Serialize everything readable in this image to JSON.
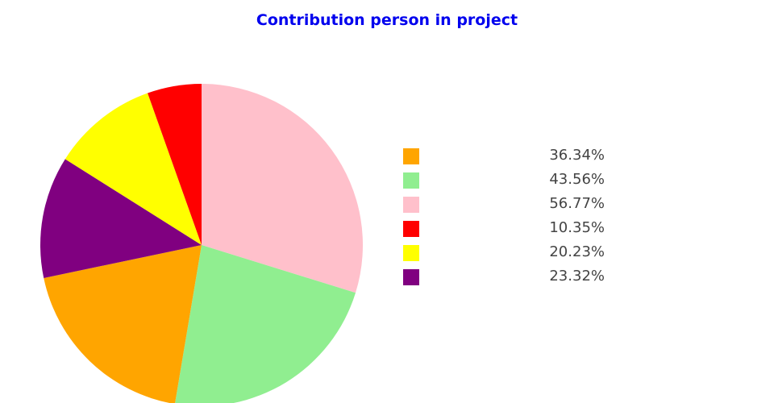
{
  "chart_data": {
    "type": "pie",
    "title": "Contribution person in project",
    "slices": [
      {
        "value": 56.77,
        "label": "56.77%",
        "color": "#ffc0cb"
      },
      {
        "value": 43.56,
        "label": "43.56%",
        "color": "#90ee90"
      },
      {
        "value": 36.34,
        "label": "36.34%",
        "color": "#ffa500"
      },
      {
        "value": 23.32,
        "label": "23.32%",
        "color": "#800080"
      },
      {
        "value": 20.23,
        "label": "20.23%",
        "color": "#ffff00"
      },
      {
        "value": 10.35,
        "label": "10.35%",
        "color": "#ff0000"
      }
    ],
    "legend": [
      {
        "label": "36.34%",
        "color": "#ffa500"
      },
      {
        "label": "43.56%",
        "color": "#90ee90"
      },
      {
        "label": "56.77%",
        "color": "#ffc0cb"
      },
      {
        "label": "10.35%",
        "color": "#ff0000"
      },
      {
        "label": "20.23%",
        "color": "#ffff00"
      },
      {
        "label": "23.32%",
        "color": "#800080"
      }
    ],
    "legend_position": "right",
    "start_angle": "top, clockwise"
  }
}
